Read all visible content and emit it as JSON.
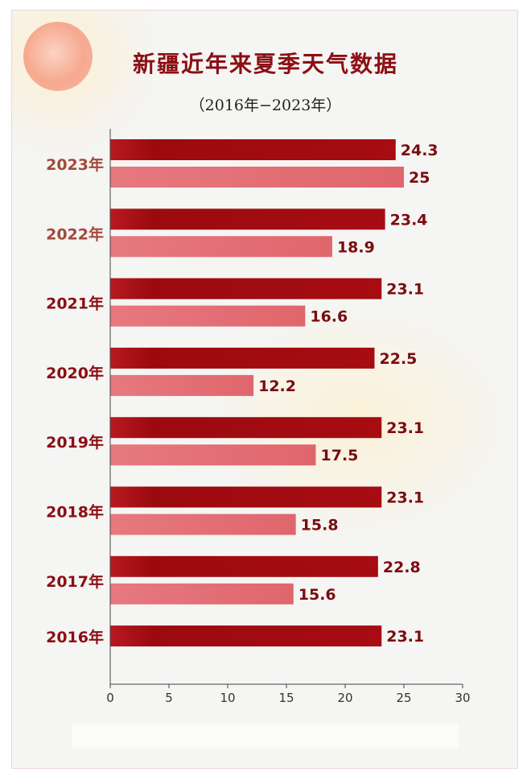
{
  "title": "新疆近年来夏季天气数据",
  "subtitle": "（2016年−2023年）",
  "colors": {
    "series_dark": "#a60c12",
    "series_light": "#e0666d",
    "year_label_recent": "#a24a3c",
    "year_label": "#8b0f14",
    "value_label": "#7a0c10",
    "axis": "#444444"
  },
  "chart_data": {
    "type": "bar",
    "orientation": "horizontal",
    "categories": [
      "2023年",
      "2022年",
      "2021年",
      "2020年",
      "2019年",
      "2018年",
      "2017年",
      "2016年"
    ],
    "series": [
      {
        "values": [
          24.3,
          23.4,
          23.1,
          22.5,
          23.1,
          23.1,
          22.8,
          23.1
        ]
      },
      {
        "values": [
          25,
          18.9,
          16.6,
          12.2,
          17.5,
          15.8,
          15.6,
          null
        ]
      }
    ],
    "xlim": [
      0,
      30
    ],
    "xticks": [
      0,
      5,
      10,
      15,
      20,
      25,
      30
    ],
    "grid": false,
    "legend": "none"
  }
}
